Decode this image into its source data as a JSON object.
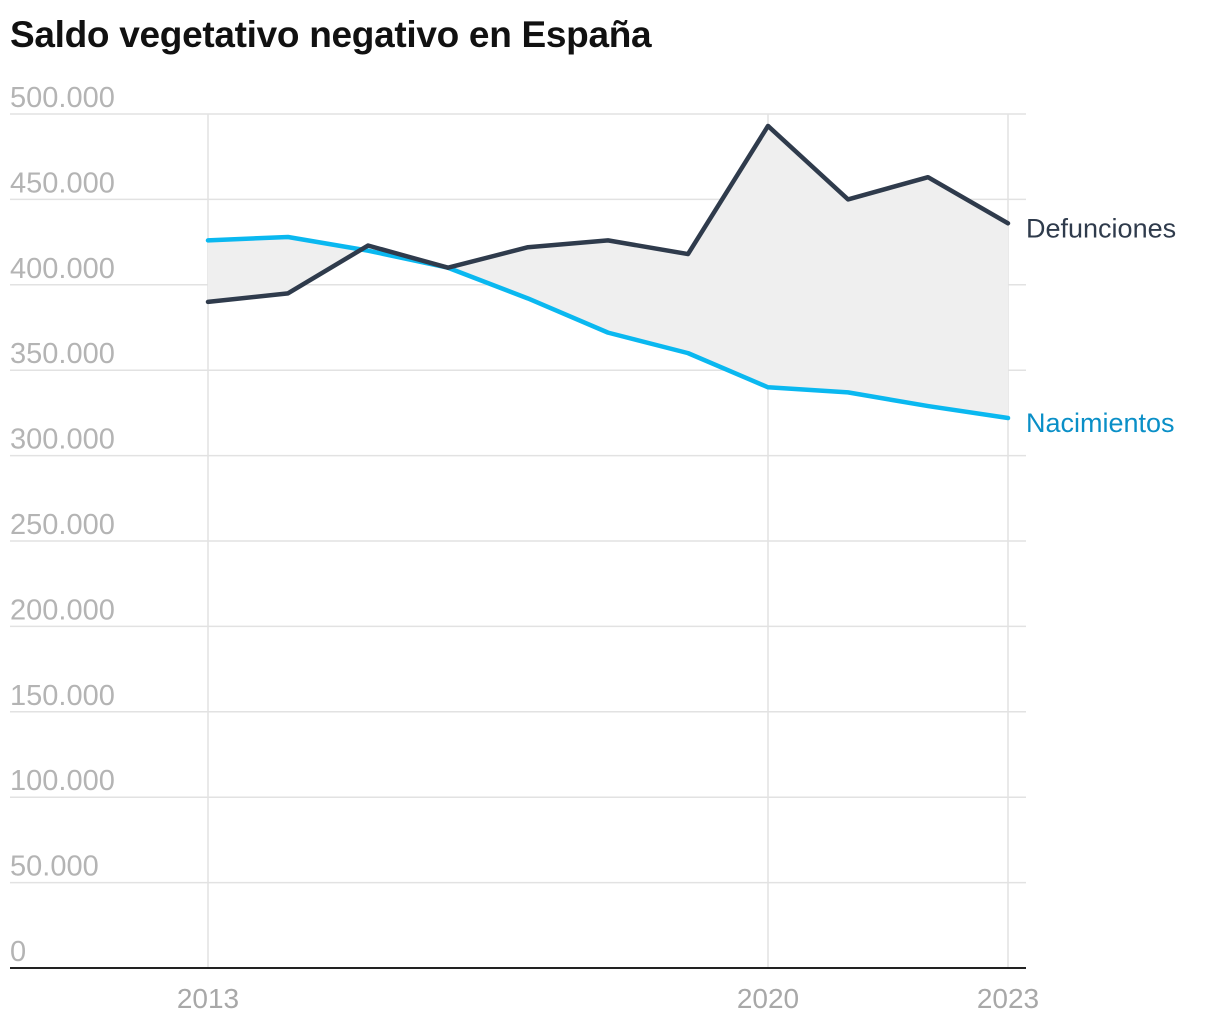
{
  "chart_data": {
    "type": "area",
    "title": "Saldo vegetativo negativo en España",
    "xlabel": "",
    "ylabel": "",
    "x": [
      2013,
      2014,
      2015,
      2016,
      2017,
      2018,
      2019,
      2020,
      2021,
      2022,
      2023
    ],
    "x_tick_labels": [
      "2013",
      "2020",
      "2023"
    ],
    "x_tick_values": [
      2013,
      2020,
      2023
    ],
    "y_tick_labels": [
      "0",
      "50.000",
      "100.000",
      "150.000",
      "200.000",
      "250.000",
      "300.000",
      "350.000",
      "400.000",
      "450.000",
      "500.000"
    ],
    "ylim": [
      0,
      500000
    ],
    "grid": true,
    "series": [
      {
        "name": "Defunciones",
        "color": "#2f3b4c",
        "values": [
          390000,
          395000,
          423000,
          410000,
          422000,
          426000,
          418000,
          493000,
          450000,
          463000,
          436000
        ]
      },
      {
        "name": "Nacimientos",
        "color": "#0ab8f0",
        "label_color": "#0a8fc7",
        "values": [
          426000,
          428000,
          420000,
          410000,
          392000,
          372000,
          360000,
          340000,
          337000,
          329000,
          322000
        ]
      }
    ],
    "fill_between": {
      "color": "#efefef"
    }
  }
}
